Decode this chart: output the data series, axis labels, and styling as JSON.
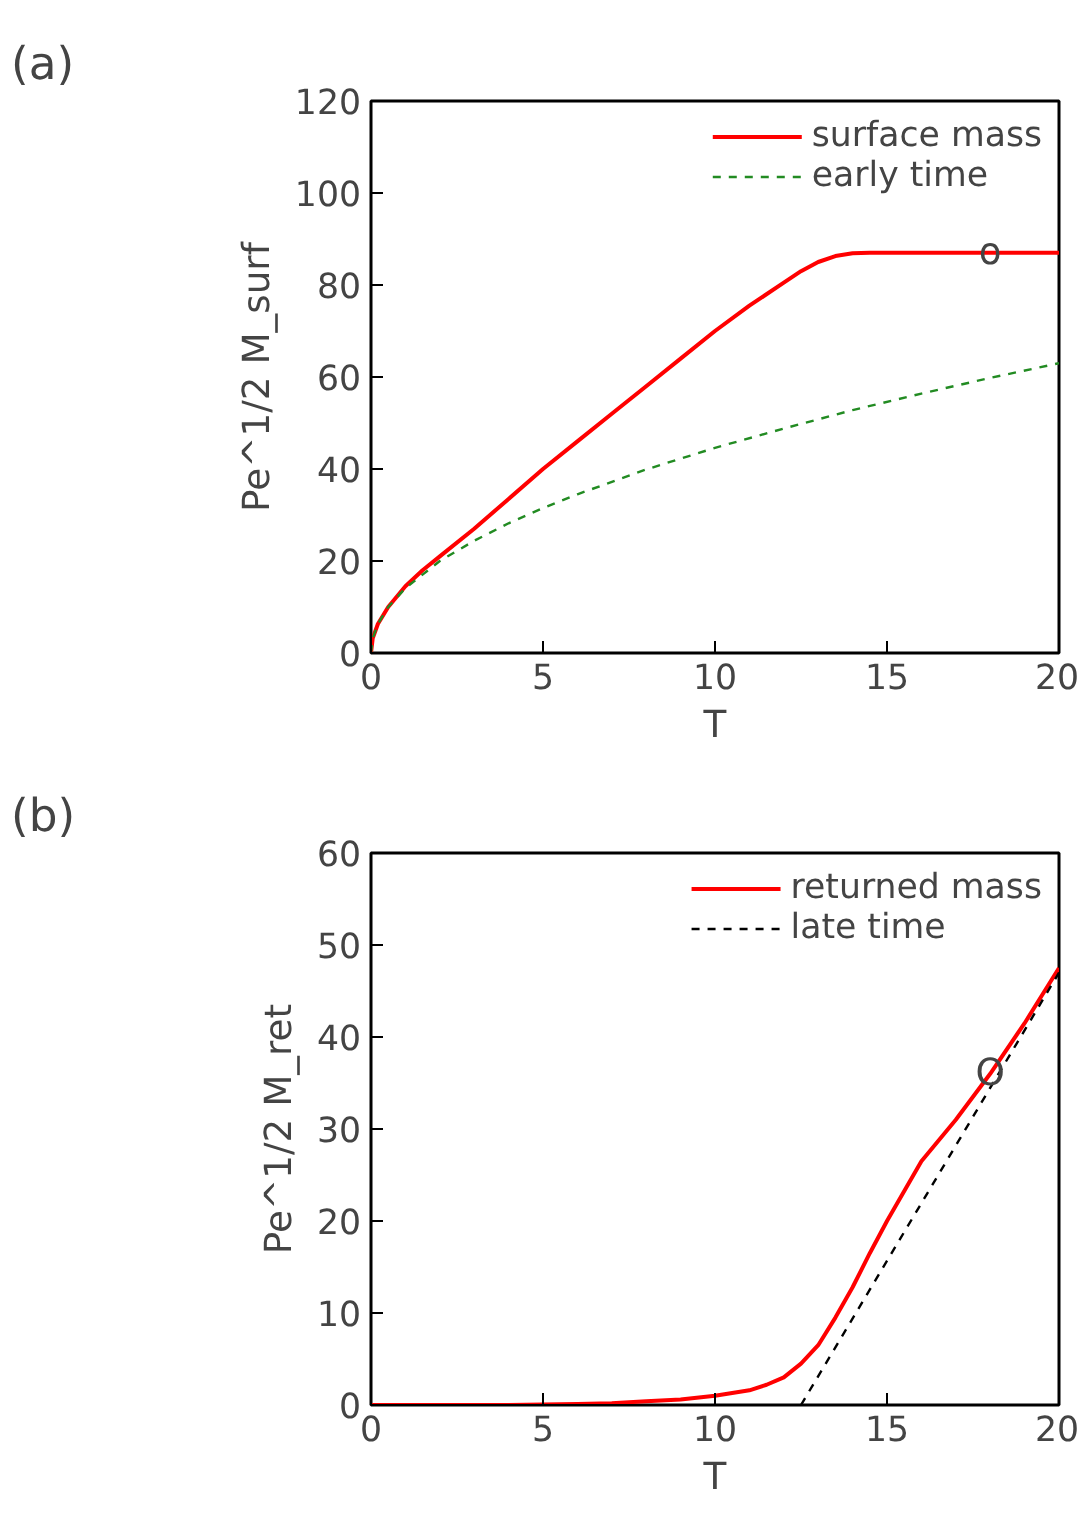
{
  "chart_data": [
    {
      "type": "line",
      "title": "(a)",
      "xlabel": "T",
      "ylabel": "Pe^1/2 M_surf",
      "xlim": [
        0,
        20
      ],
      "ylim": [
        0,
        120
      ],
      "xticks": [
        0,
        5,
        10,
        15,
        20
      ],
      "yticks": [
        0,
        20,
        40,
        60,
        80,
        100,
        120
      ],
      "grid": false,
      "legend": "top right",
      "annotations": [
        {
          "text": "o",
          "x": 18,
          "y": 87
        }
      ],
      "series": [
        {
          "name": "surface mass",
          "color": "#ff0000",
          "line_style": "solid",
          "x": [
            0,
            0.05,
            0.2,
            0.5,
            1,
            1.5,
            2,
            3,
            4,
            5,
            6,
            7,
            8,
            9,
            10,
            11,
            12,
            12.5,
            13,
            13.5,
            14,
            14.5,
            15,
            16,
            17,
            18,
            19,
            20
          ],
          "values": [
            0,
            3.2,
            6.3,
            10,
            14.5,
            18,
            21,
            27,
            33.5,
            40,
            46,
            52,
            58,
            64,
            70,
            75.5,
            80.5,
            83,
            85,
            86.3,
            86.9,
            87,
            87,
            87,
            87,
            87,
            87,
            87
          ]
        },
        {
          "name": "early time",
          "color": "#228b22",
          "line_style": "dashed",
          "x": [
            0,
            0.05,
            0.2,
            0.5,
            1,
            2,
            3,
            4,
            5,
            6,
            8,
            10,
            12,
            14,
            16,
            18,
            20
          ],
          "values": [
            0,
            3.2,
            6.3,
            10,
            14.1,
            20,
            24.4,
            28.2,
            31.5,
            34.5,
            39.9,
            44.6,
            48.8,
            52.8,
            56.4,
            59.8,
            63
          ]
        }
      ]
    },
    {
      "type": "line",
      "title": "(b)",
      "xlabel": "T",
      "ylabel": "Pe^1/2 M_ret",
      "xlim": [
        0,
        20
      ],
      "ylim": [
        0,
        60
      ],
      "xticks": [
        0,
        5,
        10,
        15,
        20
      ],
      "yticks": [
        0,
        10,
        20,
        30,
        40,
        50,
        60
      ],
      "grid": false,
      "legend": "top right",
      "annotations": [
        {
          "text": "O",
          "x": 18,
          "y": 36
        }
      ],
      "series": [
        {
          "name": "returned mass",
          "color": "#ff0000",
          "line_style": "solid",
          "x": [
            0,
            2,
            4,
            6,
            7,
            8,
            9,
            10,
            11,
            11.5,
            12,
            12.5,
            13,
            13.5,
            14,
            14.5,
            15,
            16,
            17,
            18,
            19,
            20
          ],
          "values": [
            0,
            0,
            0,
            0.1,
            0.2,
            0.4,
            0.6,
            1,
            1.6,
            2.2,
            3,
            4.5,
            6.5,
            9.5,
            12.8,
            16.5,
            20,
            26.5,
            31,
            36,
            41.5,
            47.5
          ]
        },
        {
          "name": "late time",
          "color": "#000000",
          "line_style": "dashed",
          "x": [
            12.5,
            20
          ],
          "values": [
            0,
            47
          ]
        }
      ]
    }
  ]
}
